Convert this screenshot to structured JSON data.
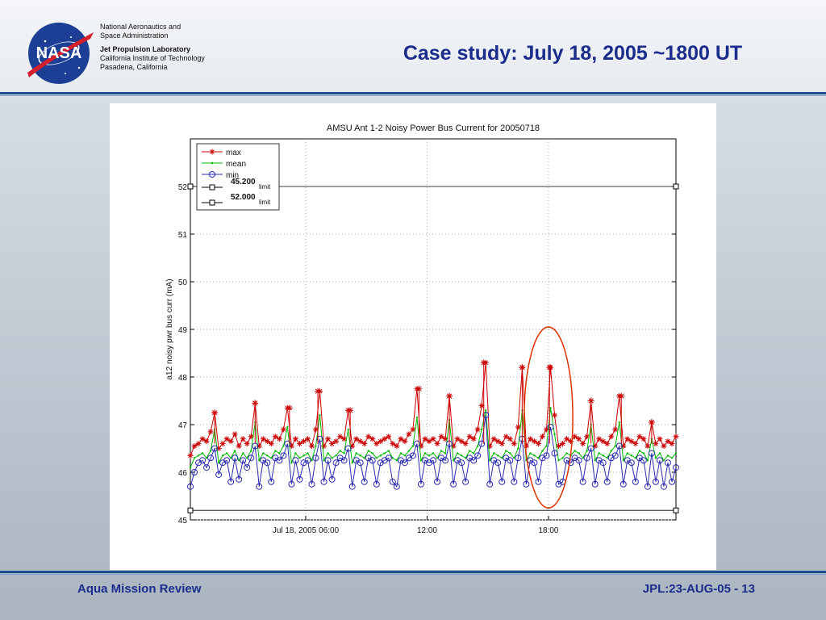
{
  "header": {
    "org_line1": "National Aeronautics and",
    "org_line2": "Space Administration",
    "jpl_line1": "Jet Propulsion Laboratory",
    "jpl_line2": "California Institute of Technology",
    "jpl_line3": "Pasadena, California",
    "logo_text": "NASA",
    "title": "Case study: July 18, 2005 ~1800 UT"
  },
  "footer": {
    "left": "Aqua Mission Review",
    "right": "JPL:23-AUG-05 - 13"
  },
  "colors": {
    "title_blue": "#1a2c8c",
    "max_series": "#cc0000",
    "mean_series": "#00bb00",
    "min_series": "#2a2ab0",
    "limit_line": "#000000",
    "highlight_ellipse": "#dd3300"
  },
  "chart_data": {
    "type": "line",
    "title": "AMSU Ant 1-2 Noisy Power Bus Current for 20050718",
    "xlabel": "",
    "ylabel": "a12 noisy pwr bus curr (mA)",
    "ylim": [
      45,
      53
    ],
    "xlim_hours": [
      0.3,
      24.3
    ],
    "xticks": [
      {
        "hour": 6,
        "label": "Jul 18, 2005 06:00"
      },
      {
        "hour": 12,
        "label": "12:00"
      },
      {
        "hour": 18,
        "label": "18:00"
      }
    ],
    "yticks": [
      45,
      46,
      47,
      48,
      49,
      50,
      51,
      52
    ],
    "grid": true,
    "legend_position": "top-left",
    "legend": [
      {
        "key": "max",
        "label": "max",
        "sub": ""
      },
      {
        "key": "mean",
        "label": "mean",
        "sub": ""
      },
      {
        "key": "min",
        "label": "min",
        "sub": ""
      },
      {
        "key": "limit_low",
        "label": "45.200",
        "sub": "limit"
      },
      {
        "key": "limit_high",
        "label": "52.000",
        "sub": "limit"
      }
    ],
    "limits": {
      "low": 45.2,
      "high": 52.0
    },
    "spike_hours": [
      1.5,
      3.5,
      5.2,
      6.6,
      8.2,
      11.6,
      13.1,
      14.8,
      16.7,
      18.05,
      20.1,
      21.6,
      23.1
    ],
    "spike_values": [
      47.25,
      47.45,
      47.35,
      47.7,
      47.3,
      47.75,
      47.6,
      48.3,
      48.2,
      48.2,
      47.5,
      47.6,
      47.05
    ],
    "series": [
      {
        "name": "max",
        "key": "max",
        "hours": [
          0.3,
          0.5,
          0.7,
          0.9,
          1.1,
          1.3,
          1.5,
          1.7,
          1.9,
          2.1,
          2.3,
          2.5,
          2.7,
          2.9,
          3.1,
          3.3,
          3.5,
          3.7,
          3.9,
          4.1,
          4.3,
          4.5,
          4.7,
          4.9,
          5.1,
          5.3,
          5.5,
          5.7,
          5.9,
          6.1,
          6.3,
          6.5,
          6.7,
          6.9,
          7.1,
          7.3,
          7.5,
          7.7,
          7.9,
          8.1,
          8.3,
          8.5,
          8.7,
          8.9,
          9.1,
          9.3,
          9.5,
          9.7,
          9.9,
          10.1,
          10.3,
          10.5,
          10.7,
          10.9,
          11.1,
          11.3,
          11.5,
          11.7,
          11.9,
          12.1,
          12.3,
          12.5,
          12.7,
          12.9,
          13.1,
          13.3,
          13.5,
          13.7,
          13.9,
          14.1,
          14.3,
          14.5,
          14.7,
          14.9,
          15.1,
          15.3,
          15.5,
          15.7,
          15.9,
          16.1,
          16.3,
          16.5,
          16.7,
          16.9,
          17.1,
          17.3,
          17.5,
          17.7,
          17.9,
          18.1,
          18.3,
          18.5,
          18.7,
          18.9,
          19.1,
          19.3,
          19.5,
          19.7,
          19.9,
          20.1,
          20.3,
          20.5,
          20.7,
          20.9,
          21.1,
          21.3,
          21.5,
          21.7,
          21.9,
          22.1,
          22.3,
          22.5,
          22.7,
          22.9,
          23.1,
          23.3,
          23.5,
          23.7,
          23.9,
          24.1,
          24.3
        ],
        "values": [
          46.35,
          46.55,
          46.6,
          46.7,
          46.65,
          46.85,
          47.25,
          46.5,
          46.6,
          46.7,
          46.65,
          46.8,
          46.55,
          46.7,
          46.6,
          46.75,
          47.45,
          46.55,
          46.7,
          46.65,
          46.6,
          46.75,
          46.7,
          46.9,
          47.35,
          46.55,
          46.7,
          46.6,
          46.65,
          46.7,
          46.55,
          46.9,
          47.7,
          46.55,
          46.7,
          46.6,
          46.65,
          46.75,
          46.7,
          47.3,
          46.55,
          46.7,
          46.65,
          46.6,
          46.75,
          46.7,
          46.6,
          46.65,
          46.7,
          46.75,
          46.6,
          46.55,
          46.7,
          46.65,
          46.8,
          46.9,
          47.75,
          46.55,
          46.7,
          46.65,
          46.7,
          46.6,
          46.75,
          46.7,
          47.6,
          46.55,
          46.7,
          46.65,
          46.6,
          46.75,
          46.7,
          46.9,
          47.4,
          48.3,
          46.55,
          46.7,
          46.65,
          46.6,
          46.75,
          46.7,
          46.6,
          46.95,
          48.2,
          46.55,
          46.7,
          46.65,
          46.6,
          46.75,
          46.9,
          48.2,
          47.2,
          46.55,
          46.6,
          46.7,
          46.65,
          46.75,
          46.7,
          46.6,
          46.75,
          47.5,
          46.55,
          46.7,
          46.65,
          46.6,
          46.75,
          46.9,
          47.6,
          46.55,
          46.7,
          46.65,
          46.6,
          46.75,
          46.7,
          46.55,
          47.05,
          46.6,
          46.7,
          46.55,
          46.65,
          46.6,
          46.75
        ]
      },
      {
        "name": "mean",
        "key": "mean",
        "hours": [
          0.3,
          0.5,
          0.7,
          0.9,
          1.1,
          1.3,
          1.5,
          1.7,
          1.9,
          2.1,
          2.3,
          2.5,
          2.7,
          2.9,
          3.1,
          3.3,
          3.5,
          3.7,
          3.9,
          4.1,
          4.3,
          4.5,
          4.7,
          4.9,
          5.1,
          5.3,
          5.5,
          5.7,
          5.9,
          6.1,
          6.3,
          6.5,
          6.7,
          6.9,
          7.1,
          7.3,
          7.5,
          7.7,
          7.9,
          8.1,
          8.3,
          8.5,
          8.7,
          8.9,
          9.1,
          9.3,
          9.5,
          9.7,
          9.9,
          10.1,
          10.3,
          10.5,
          10.7,
          10.9,
          11.1,
          11.3,
          11.5,
          11.7,
          11.9,
          12.1,
          12.3,
          12.5,
          12.7,
          12.9,
          13.1,
          13.3,
          13.5,
          13.7,
          13.9,
          14.1,
          14.3,
          14.5,
          14.7,
          14.9,
          15.1,
          15.3,
          15.5,
          15.7,
          15.9,
          16.1,
          16.3,
          16.5,
          16.7,
          16.9,
          17.1,
          17.3,
          17.5,
          17.7,
          17.9,
          18.1,
          18.3,
          18.5,
          18.7,
          18.9,
          19.1,
          19.3,
          19.5,
          19.7,
          19.9,
          20.1,
          20.3,
          20.5,
          20.7,
          20.9,
          21.1,
          21.3,
          21.5,
          21.7,
          21.9,
          22.1,
          22.3,
          22.5,
          22.7,
          22.9,
          23.1,
          23.3,
          23.5,
          23.7,
          23.9,
          24.1,
          24.3
        ],
        "values": [
          46.1,
          46.3,
          46.35,
          46.4,
          46.3,
          46.45,
          46.9,
          46.2,
          46.35,
          46.4,
          46.3,
          46.45,
          46.25,
          46.4,
          46.3,
          46.45,
          47.05,
          46.25,
          46.4,
          46.35,
          46.3,
          46.45,
          46.4,
          46.55,
          46.95,
          46.2,
          46.4,
          46.3,
          46.35,
          46.4,
          46.25,
          46.55,
          47.2,
          46.25,
          46.4,
          46.3,
          46.35,
          46.45,
          46.4,
          46.9,
          46.2,
          46.4,
          46.35,
          46.3,
          46.45,
          46.4,
          46.3,
          46.35,
          46.4,
          46.45,
          46.3,
          46.25,
          46.4,
          46.35,
          46.45,
          46.55,
          47.15,
          46.25,
          46.4,
          46.35,
          46.4,
          46.3,
          46.45,
          46.4,
          47.1,
          46.25,
          46.4,
          46.35,
          46.3,
          46.45,
          46.4,
          46.55,
          46.9,
          47.3,
          46.25,
          46.4,
          46.35,
          46.3,
          46.45,
          46.4,
          46.3,
          46.5,
          47.3,
          46.25,
          46.4,
          46.35,
          46.3,
          46.45,
          46.55,
          47.35,
          46.8,
          46.25,
          46.3,
          46.4,
          46.35,
          46.45,
          46.4,
          46.3,
          46.45,
          47.0,
          46.25,
          46.4,
          46.35,
          46.3,
          46.45,
          46.55,
          47.05,
          46.25,
          46.4,
          46.35,
          46.3,
          46.45,
          46.4,
          46.25,
          46.7,
          46.3,
          46.4,
          46.25,
          46.35,
          46.3,
          46.4
        ]
      },
      {
        "name": "min",
        "key": "min",
        "hours": [
          0.3,
          0.5,
          0.7,
          0.9,
          1.1,
          1.3,
          1.5,
          1.7,
          1.9,
          2.1,
          2.3,
          2.5,
          2.7,
          2.9,
          3.1,
          3.3,
          3.5,
          3.7,
          3.9,
          4.1,
          4.3,
          4.5,
          4.7,
          4.9,
          5.1,
          5.3,
          5.5,
          5.7,
          5.9,
          6.1,
          6.3,
          6.5,
          6.7,
          6.9,
          7.1,
          7.3,
          7.5,
          7.7,
          7.9,
          8.1,
          8.3,
          8.5,
          8.7,
          8.9,
          9.1,
          9.3,
          9.5,
          9.7,
          9.9,
          10.1,
          10.3,
          10.5,
          10.7,
          10.9,
          11.1,
          11.3,
          11.5,
          11.7,
          11.9,
          12.1,
          12.3,
          12.5,
          12.7,
          12.9,
          13.1,
          13.3,
          13.5,
          13.7,
          13.9,
          14.1,
          14.3,
          14.5,
          14.7,
          14.9,
          15.1,
          15.3,
          15.5,
          15.7,
          15.9,
          16.1,
          16.3,
          16.5,
          16.7,
          16.9,
          17.1,
          17.3,
          17.5,
          17.7,
          17.9,
          18.1,
          18.3,
          18.5,
          18.7,
          18.9,
          19.1,
          19.3,
          19.5,
          19.7,
          19.9,
          20.1,
          20.3,
          20.5,
          20.7,
          20.9,
          21.1,
          21.3,
          21.5,
          21.7,
          21.9,
          22.1,
          22.3,
          22.5,
          22.7,
          22.9,
          23.1,
          23.3,
          23.5,
          23.7,
          23.9,
          24.1,
          24.3
        ],
        "values": [
          45.7,
          46.0,
          46.2,
          46.25,
          46.1,
          46.3,
          46.5,
          45.95,
          46.2,
          46.25,
          45.8,
          46.3,
          45.85,
          46.25,
          46.1,
          46.3,
          46.55,
          45.7,
          46.25,
          46.2,
          45.8,
          46.3,
          46.25,
          46.35,
          46.6,
          45.75,
          46.25,
          45.85,
          46.2,
          46.25,
          45.75,
          46.3,
          46.7,
          45.8,
          46.25,
          45.85,
          46.2,
          46.3,
          46.25,
          46.5,
          45.7,
          46.25,
          46.2,
          45.8,
          46.3,
          46.25,
          45.75,
          46.2,
          46.25,
          46.3,
          45.8,
          45.7,
          46.25,
          46.2,
          46.3,
          46.35,
          46.6,
          45.75,
          46.25,
          46.2,
          46.25,
          45.8,
          46.3,
          46.25,
          46.6,
          45.75,
          46.25,
          46.2,
          45.8,
          46.3,
          46.25,
          46.35,
          46.6,
          47.2,
          45.75,
          46.25,
          46.2,
          45.8,
          46.3,
          46.25,
          45.8,
          46.3,
          46.7,
          45.75,
          46.25,
          46.2,
          45.8,
          46.3,
          46.35,
          46.95,
          46.4,
          45.75,
          45.8,
          46.25,
          46.2,
          46.3,
          46.25,
          45.8,
          46.3,
          46.5,
          45.75,
          46.25,
          46.2,
          45.8,
          46.3,
          46.35,
          46.55,
          45.75,
          46.25,
          46.2,
          45.8,
          46.3,
          46.25,
          45.7,
          46.4,
          45.8,
          46.25,
          45.7,
          46.2,
          45.8,
          46.1
        ]
      }
    ],
    "highlight": {
      "center_hour": 18.0,
      "y_low": 45.25,
      "y_high": 49.05,
      "half_width_hours": 1.2
    }
  }
}
